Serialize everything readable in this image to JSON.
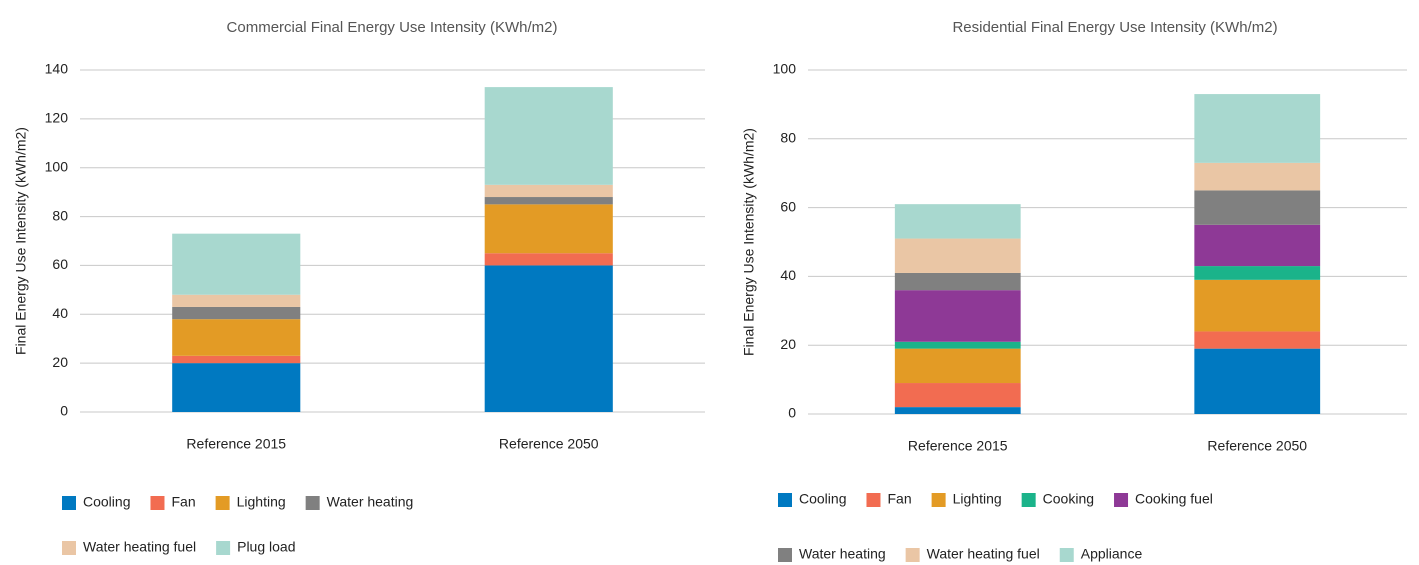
{
  "chart_data": [
    {
      "type": "bar",
      "stacked": true,
      "title": "Commercial Final Energy Use Intensity (KWh/m2)",
      "ylabel": "Final Energy Use Intensity (kWh/m2)",
      "categories": [
        "Reference 2015",
        "Reference 2050"
      ],
      "series": [
        {
          "name": "Cooling",
          "color": "#0079c1",
          "values": [
            20,
            60
          ]
        },
        {
          "name": "Fan",
          "color": "#f26c51",
          "values": [
            3,
            5
          ]
        },
        {
          "name": "Lighting",
          "color": "#e39b25",
          "values": [
            15,
            20
          ]
        },
        {
          "name": "Water heating",
          "color": "#808080",
          "values": [
            5,
            3
          ]
        },
        {
          "name": "Water heating fuel",
          "color": "#eac6a5",
          "values": [
            5,
            5
          ]
        },
        {
          "name": "Plug load",
          "color": "#a8d8cf",
          "values": [
            25,
            40
          ]
        }
      ],
      "ylim": [
        0,
        140
      ],
      "yticks": [
        0,
        20,
        40,
        60,
        80,
        100,
        120,
        140
      ],
      "grid": true
    },
    {
      "type": "bar",
      "stacked": true,
      "title": "Residential Final Energy Use Intensity (KWh/m2)",
      "ylabel": "Final Energy Use Intensity (kWh/m2)",
      "categories": [
        "Reference 2015",
        "Reference 2050"
      ],
      "series": [
        {
          "name": "Cooling",
          "color": "#0079c1",
          "values": [
            2,
            19
          ]
        },
        {
          "name": "Fan",
          "color": "#f26c51",
          "values": [
            7,
            5
          ]
        },
        {
          "name": "Lighting",
          "color": "#e39b25",
          "values": [
            10,
            15
          ]
        },
        {
          "name": "Cooking",
          "color": "#1bb38a",
          "values": [
            2,
            4
          ]
        },
        {
          "name": "Cooking fuel",
          "color": "#8e3996",
          "values": [
            15,
            12
          ]
        },
        {
          "name": "Water heating",
          "color": "#808080",
          "values": [
            5,
            10
          ]
        },
        {
          "name": "Water heating fuel",
          "color": "#eac6a5",
          "values": [
            10,
            8
          ]
        },
        {
          "name": "Appliance",
          "color": "#a8d8cf",
          "values": [
            10,
            20
          ]
        }
      ],
      "ylim": [
        0,
        100
      ],
      "yticks": [
        0,
        20,
        40,
        60,
        80,
        100
      ],
      "grid": true
    }
  ]
}
